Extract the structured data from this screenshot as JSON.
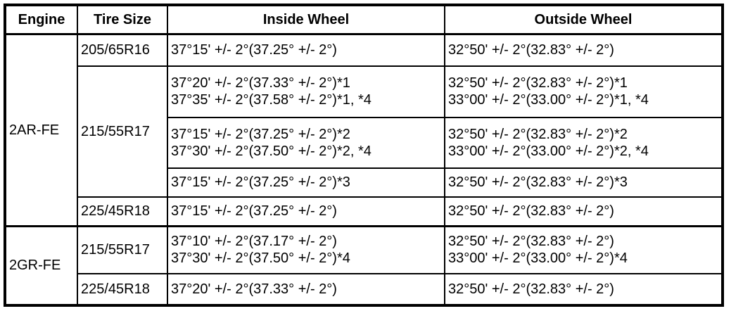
{
  "headers": [
    "Engine",
    "Tire Size",
    "Inside Wheel",
    "Outside Wheel"
  ],
  "groups": [
    {
      "engine": "2AR-FE",
      "rows": [
        {
          "tire": "205/65R16",
          "inside": [
            "37°15' +/- 2°(37.25° +/- 2°)"
          ],
          "outside": [
            "32°50' +/- 2°(32.83° +/- 2°)"
          ]
        },
        {
          "tire": "215/55R17",
          "sub": [
            {
              "inside": [
                "37°20' +/- 2°(37.33° +/- 2°)*1",
                "37°35' +/- 2°(37.58° +/- 2°)*1, *4"
              ],
              "outside": [
                "32°50' +/- 2°(32.83° +/- 2°)*1",
                "33°00' +/- 2°(33.00° +/- 2°)*1, *4"
              ]
            },
            {
              "inside": [
                "37°15' +/- 2°(37.25° +/- 2°)*2",
                "37°30' +/- 2°(37.50° +/- 2°)*2, *4"
              ],
              "outside": [
                "32°50' +/- 2°(32.83° +/- 2°)*2",
                "33°00' +/- 2°(33.00° +/- 2°)*2, *4"
              ]
            },
            {
              "inside": [
                "37°15' +/- 2°(37.25° +/- 2°)*3"
              ],
              "outside": [
                "32°50' +/- 2°(32.83° +/- 2°)*3"
              ]
            }
          ]
        },
        {
          "tire": "225/45R18",
          "inside": [
            "37°15' +/- 2°(37.25° +/- 2°)"
          ],
          "outside": [
            "32°50' +/- 2°(32.83° +/- 2°)"
          ]
        }
      ]
    },
    {
      "engine": "2GR-FE",
      "rows": [
        {
          "tire": "215/55R17",
          "inside": [
            "37°10' +/- 2°(37.17° +/- 2°)",
            "37°30' +/- 2°(37.50° +/- 2°)*4"
          ],
          "outside": [
            "32°50' +/- 2°(32.83° +/- 2°)",
            "33°00' +/- 2°(33.00° +/- 2°)*4"
          ]
        },
        {
          "tire": "225/45R18",
          "inside": [
            "37°20' +/- 2°(37.33° +/- 2°)"
          ],
          "outside": [
            "32°50' +/- 2°(32.83° +/- 2°)"
          ]
        }
      ]
    }
  ]
}
